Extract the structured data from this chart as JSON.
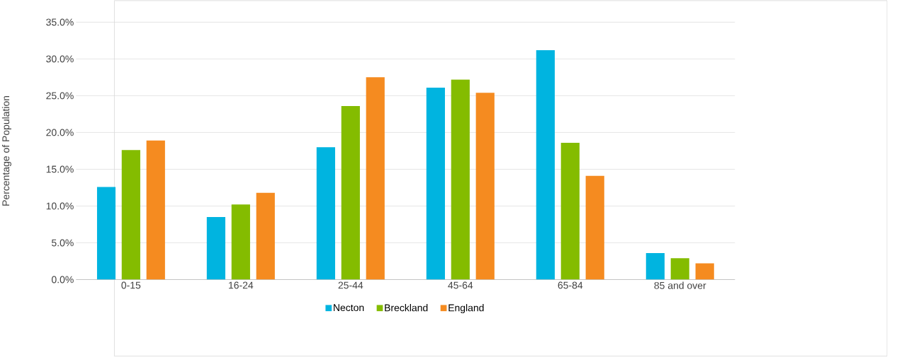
{
  "chart_data": {
    "type": "bar",
    "ylabel": "Percentage of Population",
    "categories": [
      "0-15",
      "16-24",
      "25-44",
      "45-64",
      "65-84",
      "85 and over"
    ],
    "series": [
      {
        "name": "Necton",
        "color": "#00b4e0",
        "values": [
          12.6,
          8.5,
          18.0,
          26.1,
          31.2,
          3.6
        ]
      },
      {
        "name": "Breckland",
        "color": "#84bc00",
        "values": [
          17.6,
          10.2,
          23.6,
          27.2,
          18.6,
          2.9
        ]
      },
      {
        "name": "England",
        "color": "#f58b20",
        "values": [
          18.9,
          11.8,
          27.5,
          25.4,
          14.1,
          2.2
        ]
      }
    ],
    "ylim": [
      0,
      35
    ],
    "yticks": [
      {
        "value": 0,
        "label": "0.0%"
      },
      {
        "value": 5,
        "label": "5.0%"
      },
      {
        "value": 10,
        "label": "10.0%"
      },
      {
        "value": 15,
        "label": "15.0%"
      },
      {
        "value": 20,
        "label": "20.0%"
      },
      {
        "value": 25,
        "label": "25.0%"
      },
      {
        "value": 30,
        "label": "30.0%"
      },
      {
        "value": 35,
        "label": "35.0%"
      }
    ],
    "grid": "y",
    "legend": "bottom"
  }
}
